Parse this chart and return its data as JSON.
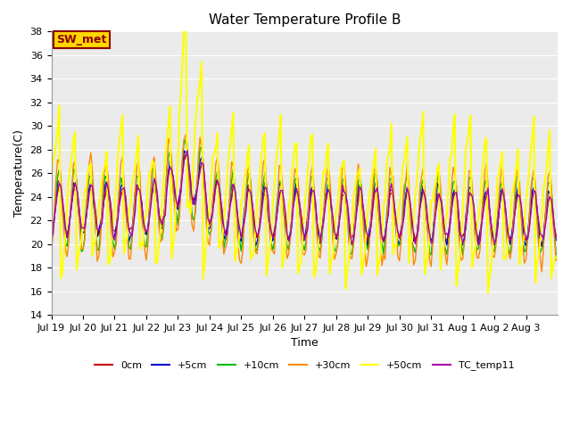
{
  "title": "Water Temperature Profile B",
  "xlabel": "Time",
  "ylabel": "Temperature(C)",
  "ylim": [
    14,
    38
  ],
  "yticks": [
    14,
    16,
    18,
    20,
    22,
    24,
    26,
    28,
    30,
    32,
    34,
    36,
    38
  ],
  "annotation_text": "SW_met",
  "annotation_color": "#8B0000",
  "annotation_bg": "#FFD700",
  "bg_color": "#EBEBEB",
  "series": [
    {
      "label": "0cm",
      "color": "#CC0000"
    },
    {
      "label": "+5cm",
      "color": "#0000CC"
    },
    {
      "label": "+10cm",
      "color": "#00BB00"
    },
    {
      "label": "+30cm",
      "color": "#FF8800"
    },
    {
      "label": "+50cm",
      "color": "#FFFF00"
    },
    {
      "label": "TC_temp11",
      "color": "#AA00AA"
    }
  ],
  "tick_labels": [
    "Jul 19",
    "Jul 20",
    "Jul 21",
    "Jul 22",
    "Jul 23",
    "Jul 24",
    "Jul 25",
    "Jul 26",
    "Jul 27",
    "Jul 28",
    "Jul 29",
    "Jul 30",
    "Jul 31",
    "Aug 1",
    "Aug 2",
    "Aug 3"
  ],
  "linewidth": 1.0,
  "title_fontsize": 11,
  "axis_fontsize": 9,
  "tick_fontsize": 8,
  "legend_fontsize": 8
}
